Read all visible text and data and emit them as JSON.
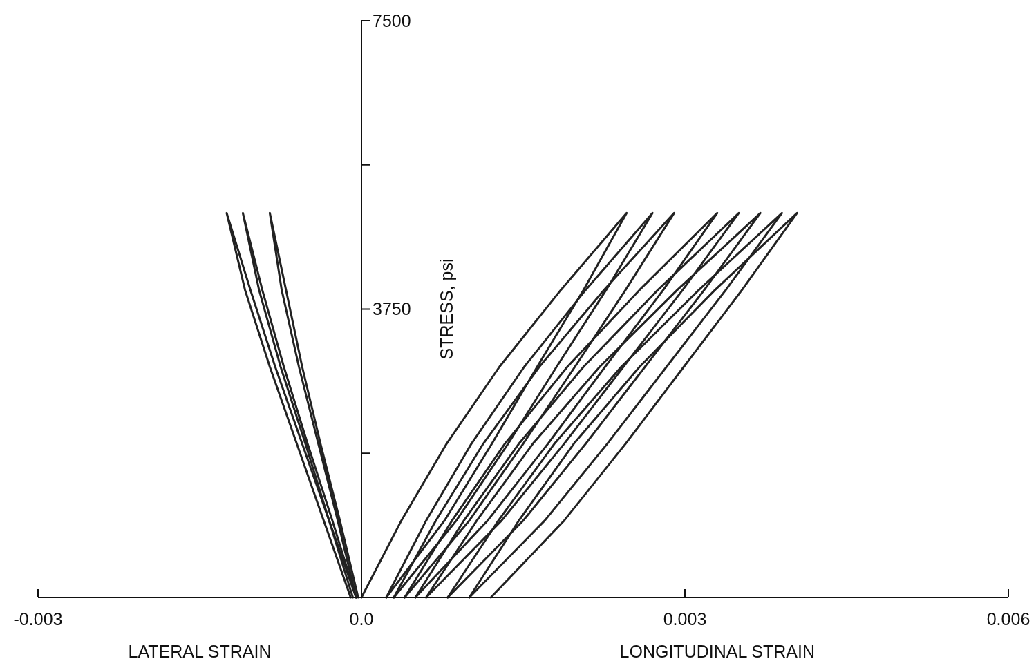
{
  "chart_data": {
    "type": "line",
    "xlabel": "LONGITUDINAL STRAIN",
    "ylabel": "STRESS, psi",
    "annotations": [
      "LATERAL STRAIN"
    ],
    "xlim": [
      -0.003,
      0.006
    ],
    "xticks": [
      -0.003,
      {
        "value": 0,
        "label": "0.0"
      },
      0.003,
      0.006
    ],
    "ylim": [
      0,
      7500
    ],
    "yticks": [
      {
        "value": 1875,
        "label": null
      },
      3750,
      {
        "value": 5625,
        "label": null
      },
      7500
    ],
    "series": [
      {
        "color": "#222222",
        "x": [
          0,
          0.00037,
          0.00079,
          0.00128,
          0.00185,
          0.00246,
          0.00206,
          0.00163,
          0.00121,
          0.00077,
          0.00023
        ],
        "values": [
          0,
          1000,
          2000,
          3000,
          4000,
          5000,
          4000,
          3000,
          2000,
          1000,
          0
        ]
      },
      {
        "color": "#222222",
        "x": [
          0.00023,
          0.0006,
          0.00102,
          0.00151,
          0.00208,
          0.0027,
          0.00227,
          0.00181,
          0.00136,
          0.00088,
          0.0003
        ],
        "values": [
          0,
          1000,
          2000,
          3000,
          4000,
          5000,
          4000,
          3000,
          2000,
          1000,
          0
        ]
      },
      {
        "color": "#222222",
        "x": [
          0.0003,
          0.00069,
          0.00113,
          0.00165,
          0.00225,
          0.0029,
          0.00245,
          0.00198,
          0.0015,
          0.001,
          0.0004
        ],
        "values": [
          0,
          1000,
          2000,
          3000,
          4000,
          5000,
          4000,
          3000,
          2000,
          1000,
          0
        ]
      },
      {
        "color": "#222222",
        "x": [
          0.0004,
          0.00084,
          0.00133,
          0.00191,
          0.00258,
          0.0033,
          0.0028,
          0.00226,
          0.00173,
          0.00117,
          0.0005
        ],
        "values": [
          0,
          1000,
          2000,
          3000,
          4000,
          5000,
          4000,
          3000,
          2000,
          1000,
          0
        ]
      },
      {
        "color": "#222222",
        "x": [
          0.0005,
          0.00095,
          0.00146,
          0.00206,
          0.00275,
          0.0035,
          0.00298,
          0.00243,
          0.00188,
          0.0013,
          0.0006
        ],
        "values": [
          0,
          1000,
          2000,
          3000,
          4000,
          5000,
          4000,
          3000,
          2000,
          1000,
          0
        ]
      },
      {
        "color": "#222222",
        "x": [
          0.0006,
          0.00107,
          0.00159,
          0.00221,
          0.00293,
          0.0037,
          0.00318,
          0.00263,
          0.00208,
          0.0015,
          0.0008
        ],
        "values": [
          0,
          1000,
          2000,
          3000,
          4000,
          5000,
          4000,
          3000,
          2000,
          1000,
          0
        ]
      },
      {
        "color": "#222222",
        "x": [
          0.0008,
          0.00127,
          0.00179,
          0.00241,
          0.00313,
          0.0039,
          0.00338,
          0.00283,
          0.00228,
          0.0017,
          0.001
        ],
        "values": [
          0,
          1000,
          2000,
          3000,
          4000,
          5000,
          4000,
          3000,
          2000,
          1000,
          0
        ]
      },
      {
        "color": "#222222",
        "x": [
          0.001,
          0.00146,
          0.00197,
          0.00258,
          0.00328,
          0.00404,
          0.00353,
          0.00299,
          0.00245,
          0.00188,
          0.0012
        ],
        "values": [
          0,
          1000,
          2000,
          3000,
          4000,
          5000,
          4000,
          3000,
          2000,
          1000,
          0
        ]
      },
      {
        "color": "#222222",
        "x": [
          -5e-05,
          -0.0003,
          -0.00055,
          -0.0008,
          -0.00103,
          -0.00125,
          -0.00108,
          -0.00085,
          -0.0006,
          -0.00035,
          -0.0001
        ],
        "values": [
          0,
          1000,
          2000,
          3000,
          4000,
          5000,
          4000,
          3000,
          2000,
          1000,
          0
        ]
      },
      {
        "color": "#222222",
        "x": [
          -5e-05,
          -0.00027,
          -0.0005,
          -0.00072,
          -0.00092,
          -0.0011,
          -0.00095,
          -0.00075,
          -0.00052,
          -0.0003,
          -8e-05
        ],
        "values": [
          0,
          1000,
          2000,
          3000,
          4000,
          5000,
          4000,
          3000,
          2000,
          1000,
          0
        ]
      },
      {
        "color": "#222222",
        "x": [
          -3e-05,
          -0.0002,
          -0.00038,
          -0.00055,
          -0.0007,
          -0.00085,
          -0.00074,
          -0.00058,
          -0.0004,
          -0.00022,
          -5e-05
        ],
        "values": [
          0,
          1000,
          2000,
          3000,
          4000,
          5000,
          4000,
          3000,
          2000,
          1000,
          0
        ]
      }
    ]
  }
}
